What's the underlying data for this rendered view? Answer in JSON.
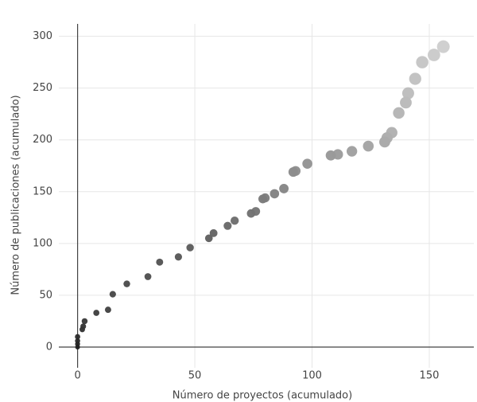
{
  "chart_data": {
    "type": "scatter",
    "x_label": "Número de proyectos (acumulado)",
    "y_label": "Número de publicaciones (acumulado)",
    "x": [
      0,
      0,
      0,
      0,
      2,
      2.4,
      3,
      8,
      13,
      15,
      21,
      30,
      35,
      43,
      48,
      56,
      58,
      64,
      67,
      74,
      76,
      79,
      80,
      84,
      88,
      92,
      93,
      98,
      108,
      111,
      117,
      124,
      131,
      132,
      134,
      137,
      140,
      141,
      144,
      147,
      152,
      156
    ],
    "y": [
      0,
      3,
      6,
      10,
      17,
      20,
      25,
      33,
      36,
      51,
      61,
      68,
      82,
      87,
      96,
      105,
      110,
      117,
      122,
      129,
      131,
      143,
      144,
      148,
      153,
      169,
      170,
      177,
      185,
      186,
      189,
      194,
      198,
      202,
      207,
      226,
      236,
      245,
      259,
      275,
      282,
      290
    ],
    "xlim": [
      -8,
      169
    ],
    "ylim": [
      -20,
      312
    ],
    "xticks": [
      0,
      50,
      100,
      150
    ],
    "yticks": [
      0,
      50,
      100,
      150,
      200,
      250,
      300
    ],
    "grid": true
  }
}
